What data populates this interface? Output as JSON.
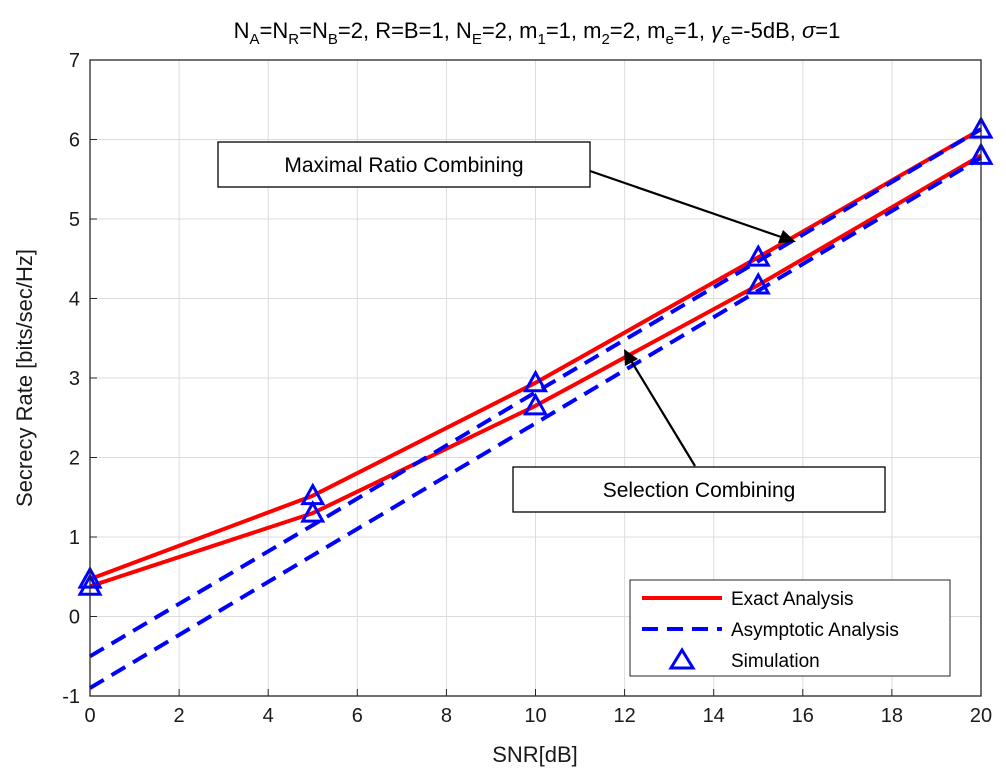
{
  "chart_data": {
    "type": "line",
    "title": "N_A=N_R=N_B=2, R=B=1, N_E=2, m_1=1, m_2=2, m_e=1, γ_e=-5dB, σ=1",
    "xlabel": "SNR[dB]",
    "ylabel": "Secrecy Rate [bits/sec/Hz]",
    "xlim": [
      0,
      20
    ],
    "ylim": [
      -1,
      7
    ],
    "xticks": [
      "0",
      "2",
      "4",
      "6",
      "8",
      "10",
      "12",
      "14",
      "16",
      "18",
      "20"
    ],
    "yticks": [
      "-1",
      "0",
      "1",
      "2",
      "3",
      "4",
      "5",
      "6",
      "7"
    ],
    "grid": true,
    "legend_position": "bottom-right",
    "legend": [
      "Exact Analysis",
      "Asymptotic Analysis",
      "Simulation"
    ],
    "series": [
      {
        "name": "Exact Analysis (MRC)",
        "style": "solid",
        "color": "#ff0000",
        "x": [
          0,
          5,
          10,
          15,
          20
        ],
        "y": [
          0.47,
          1.52,
          2.94,
          4.52,
          6.13
        ]
      },
      {
        "name": "Exact Analysis (SC)",
        "style": "solid",
        "color": "#ff0000",
        "x": [
          0,
          5,
          10,
          15,
          20
        ],
        "y": [
          0.38,
          1.3,
          2.65,
          4.17,
          5.8
        ]
      },
      {
        "name": "Asymptotic Analysis (MRC)",
        "style": "dashed",
        "color": "#0000ff",
        "x": [
          0,
          5,
          10,
          15,
          20
        ],
        "y": [
          -0.5,
          1.15,
          2.82,
          4.47,
          6.13
        ]
      },
      {
        "name": "Asymptotic Analysis (SC)",
        "style": "dashed",
        "color": "#0000ff",
        "x": [
          0,
          5,
          10,
          15,
          20
        ],
        "y": [
          -0.9,
          0.77,
          2.43,
          4.1,
          5.77
        ]
      },
      {
        "name": "Simulation (MRC)",
        "style": "marker",
        "color": "#0000ff",
        "x": [
          0,
          5,
          10,
          15,
          20
        ],
        "y": [
          0.47,
          1.52,
          2.94,
          4.52,
          6.13
        ]
      },
      {
        "name": "Simulation (SC)",
        "style": "marker",
        "color": "#0000ff",
        "x": [
          0,
          5,
          10,
          15,
          20
        ],
        "y": [
          0.38,
          1.3,
          2.65,
          4.17,
          5.8
        ]
      }
    ],
    "annotations": [
      {
        "text": "Maximal Ratio Combining",
        "arrow_to": [
          16.0,
          4.75
        ]
      },
      {
        "text": "Selection Combining",
        "arrow_to": [
          12.0,
          3.35
        ]
      }
    ]
  },
  "colors": {
    "exact": "#ff0000",
    "asymptotic": "#0000ff",
    "grid": "#dcdcdc"
  }
}
